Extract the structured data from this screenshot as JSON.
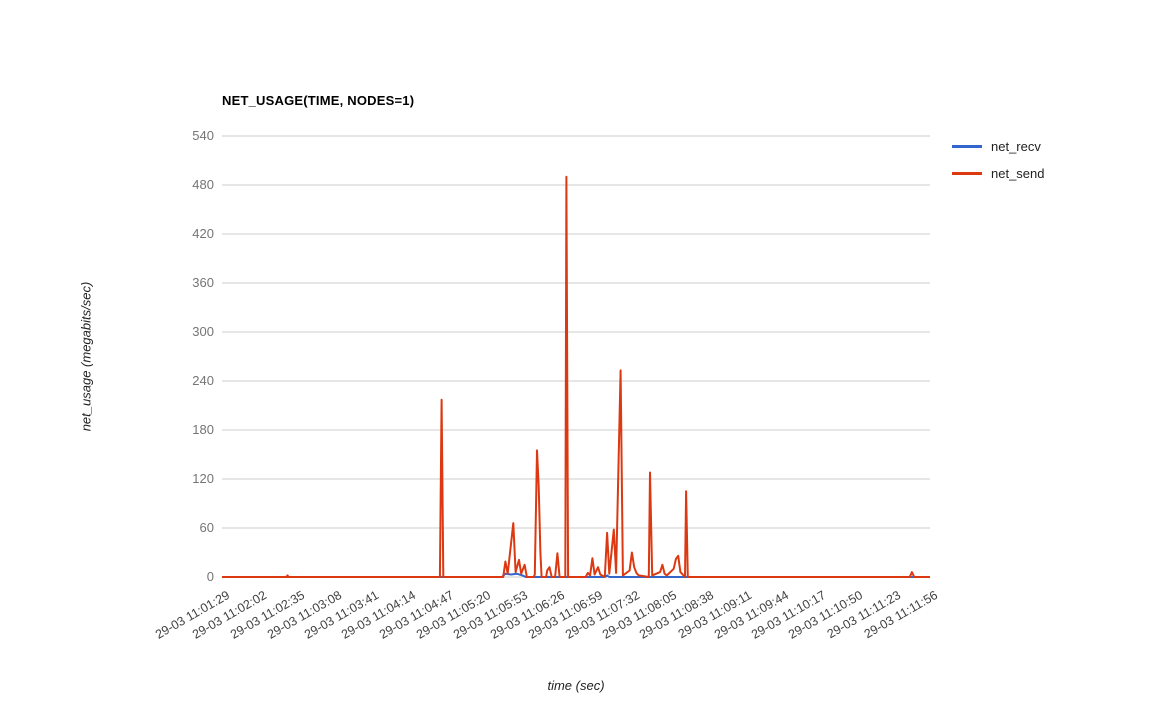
{
  "chart_data": {
    "type": "line",
    "title": "NET_USAGE(TIME, NODES=1)",
    "xlabel": "time (sec)",
    "ylabel": "net_usage (megabits/sec)",
    "ylim": [
      0,
      540
    ],
    "yticks": [
      0,
      60,
      120,
      180,
      240,
      300,
      360,
      420,
      480,
      540
    ],
    "grid": "horizontal",
    "legend_position": "right",
    "grid_color": "#cccccc",
    "tick_label_color": "#757575",
    "x_range_seconds": [
      0,
      627
    ],
    "xtick_seconds_step": 33,
    "xticklabels": [
      "29-03 11:01:29",
      "29-03 11:02:02",
      "29-03 11:02:35",
      "29-03 11:03:08",
      "29-03 11:03:41",
      "29-03 11:04:14",
      "29-03 11:04:47",
      "29-03 11:05:20",
      "29-03 11:05:53",
      "29-03 11:06:26",
      "29-03 11:06:59",
      "29-03 11:07:32",
      "29-03 11:08:05",
      "29-03 11:08:38",
      "29-03 11:09:11",
      "29-03 11:09:44",
      "29-03 11:10:17",
      "29-03 11:10:50",
      "29-03 11:11:23",
      "29-03 11:11:56"
    ],
    "series": [
      {
        "name": "net_recv",
        "color": "#3366cc",
        "points": [
          [
            0,
            0
          ],
          [
            248,
            0
          ],
          [
            251,
            4
          ],
          [
            256,
            3
          ],
          [
            261,
            4
          ],
          [
            266,
            2
          ],
          [
            269,
            0
          ],
          [
            339,
            0
          ],
          [
            341,
            2
          ],
          [
            343,
            0
          ],
          [
            627,
            0
          ]
        ]
      },
      {
        "name": "net_send",
        "color": "#dc3912",
        "points": [
          [
            0,
            0
          ],
          [
            57,
            0
          ],
          [
            58,
            2
          ],
          [
            59,
            0
          ],
          [
            193,
            0
          ],
          [
            194.5,
            217
          ],
          [
            196,
            0
          ],
          [
            249,
            0
          ],
          [
            251,
            19
          ],
          [
            253,
            4
          ],
          [
            258,
            66
          ],
          [
            260,
            6
          ],
          [
            263,
            21
          ],
          [
            265,
            4
          ],
          [
            268,
            15
          ],
          [
            270,
            0
          ],
          [
            276,
            0
          ],
          [
            277,
            3
          ],
          [
            279,
            155
          ],
          [
            280.5,
            111
          ],
          [
            282,
            30
          ],
          [
            283,
            0
          ],
          [
            287,
            0
          ],
          [
            288,
            8
          ],
          [
            290,
            12
          ],
          [
            292,
            0
          ],
          [
            295,
            0
          ],
          [
            297,
            29
          ],
          [
            299,
            0
          ],
          [
            304,
            0
          ],
          [
            305,
            490
          ],
          [
            306.5,
            0
          ],
          [
            322,
            0
          ],
          [
            324,
            5
          ],
          [
            326,
            2
          ],
          [
            328,
            23
          ],
          [
            330,
            3
          ],
          [
            333,
            12
          ],
          [
            335,
            3
          ],
          [
            339,
            0
          ],
          [
            341,
            54
          ],
          [
            343,
            4
          ],
          [
            347,
            58
          ],
          [
            349,
            5
          ],
          [
            353,
            253
          ],
          [
            355,
            2
          ],
          [
            361,
            8
          ],
          [
            363,
            30
          ],
          [
            365,
            12
          ],
          [
            367,
            5
          ],
          [
            369,
            2
          ],
          [
            378,
            0
          ],
          [
            379,
            128
          ],
          [
            381,
            2
          ],
          [
            388,
            6
          ],
          [
            390,
            15
          ],
          [
            392,
            4
          ],
          [
            394,
            2
          ],
          [
            400,
            10
          ],
          [
            402,
            22
          ],
          [
            404,
            26
          ],
          [
            406,
            6
          ],
          [
            410,
            0
          ],
          [
            411,
            105
          ],
          [
            412.5,
            0
          ],
          [
            609,
            0
          ],
          [
            611,
            6
          ],
          [
            613,
            0
          ],
          [
            627,
            0
          ]
        ]
      }
    ]
  }
}
